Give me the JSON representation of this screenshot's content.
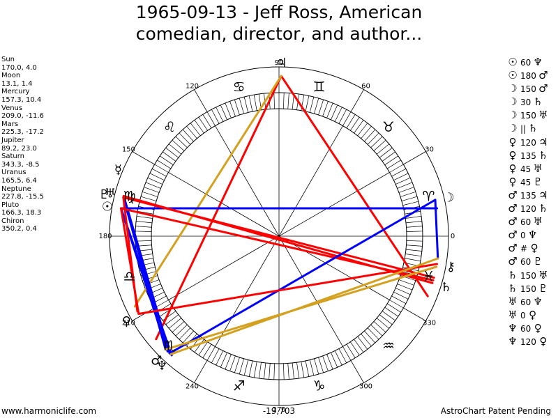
{
  "title_line1": "1965-09-13 - Jeff Ross, American",
  "title_line2": "comedian, director, and author...",
  "planets": [
    {
      "name": "Sun",
      "glyph": "☉",
      "values": "170.0, 4.0",
      "lon": 170.0
    },
    {
      "name": "Moon",
      "glyph": "☽",
      "values": "13.1, 1.4",
      "lon": 13.1
    },
    {
      "name": "Mercury",
      "glyph": "☿",
      "values": "157.3, 10.4",
      "lon": 157.3
    },
    {
      "name": "Venus",
      "glyph": "♀",
      "values": "209.0, -11.6",
      "lon": 209.0
    },
    {
      "name": "Mars",
      "glyph": "♂",
      "values": "225.3, -17.2",
      "lon": 225.3
    },
    {
      "name": "Jupiter",
      "glyph": "♃",
      "values": "89.2, 23.0",
      "lon": 89.2
    },
    {
      "name": "Saturn",
      "glyph": "♄",
      "values": "343.3, -8.5",
      "lon": 343.3
    },
    {
      "name": "Uranus",
      "glyph": "♅",
      "values": "165.5, 6.4",
      "lon": 165.5
    },
    {
      "name": "Neptune",
      "glyph": "♆",
      "values": "227.8, -15.5",
      "lon": 227.8
    },
    {
      "name": "Pluto",
      "glyph": "♇",
      "values": "166.3, 18.3",
      "lon": 166.3
    },
    {
      "name": "Chiron",
      "glyph": "⚷",
      "values": "350.2, 0.4",
      "lon": 350.2
    }
  ],
  "degree_labels": [
    {
      "deg": 0,
      "text": "0"
    },
    {
      "deg": 30,
      "text": "30"
    },
    {
      "deg": 60,
      "text": "60"
    },
    {
      "deg": 90,
      "text": "90"
    },
    {
      "deg": 120,
      "text": "120"
    },
    {
      "deg": 150,
      "text": "150"
    },
    {
      "deg": 180,
      "text": "180"
    },
    {
      "deg": 210,
      "text": "210"
    },
    {
      "deg": 240,
      "text": "240"
    },
    {
      "deg": 270,
      "text": "270"
    },
    {
      "deg": 300,
      "text": "300"
    },
    {
      "deg": 330,
      "text": "330"
    }
  ],
  "signs": [
    {
      "name": "aries",
      "glyph": "♈",
      "deg": 15
    },
    {
      "name": "taurus",
      "glyph": "♉",
      "deg": 45
    },
    {
      "name": "gemini",
      "glyph": "♊",
      "deg": 75
    },
    {
      "name": "cancer",
      "glyph": "♋",
      "deg": 105
    },
    {
      "name": "leo",
      "glyph": "♌",
      "deg": 135
    },
    {
      "name": "virgo",
      "glyph": "♍",
      "deg": 165
    },
    {
      "name": "libra",
      "glyph": "♎",
      "deg": 195
    },
    {
      "name": "scorpio",
      "glyph": "♏",
      "deg": 225
    },
    {
      "name": "sagittarius",
      "glyph": "♐",
      "deg": 255
    },
    {
      "name": "capricorn",
      "glyph": "♑",
      "deg": 285
    },
    {
      "name": "aquarius",
      "glyph": "♒",
      "deg": 315
    },
    {
      "name": "pisces",
      "glyph": "♓",
      "deg": 345
    }
  ],
  "aspects": [
    {
      "p1": "☉",
      "angle": "60",
      "p2": "♆"
    },
    {
      "p1": "☉",
      "angle": "180",
      "p2": "♂"
    },
    {
      "p1": "☽",
      "angle": "150",
      "p2": "♂"
    },
    {
      "p1": "☽",
      "angle": "30",
      "p2": "♄"
    },
    {
      "p1": "☽",
      "angle": "150",
      "p2": "♅"
    },
    {
      "p1": "☽",
      "angle": "||",
      "p2": "♄"
    },
    {
      "p1": "♀",
      "angle": "120",
      "p2": "♃"
    },
    {
      "p1": "♀",
      "angle": "135",
      "p2": "♄"
    },
    {
      "p1": "♀",
      "angle": "45",
      "p2": "♅"
    },
    {
      "p1": "♀",
      "angle": "45",
      "p2": "♇"
    },
    {
      "p1": "♂",
      "angle": "135",
      "p2": "♃"
    },
    {
      "p1": "♂",
      "angle": "120",
      "p2": "♄"
    },
    {
      "p1": "♂",
      "angle": "60",
      "p2": "♅"
    },
    {
      "p1": "♂",
      "angle": "0",
      "p2": "♆"
    },
    {
      "p1": "♂",
      "angle": "#",
      "p2": "♀"
    },
    {
      "p1": "♂",
      "angle": "60",
      "p2": "♇"
    },
    {
      "p1": "♄",
      "angle": "150",
      "p2": "♅"
    },
    {
      "p1": "♄",
      "angle": "150",
      "p2": "♇"
    },
    {
      "p1": "♅",
      "angle": "60",
      "p2": "♆"
    },
    {
      "p1": "♅",
      "angle": "0",
      "p2": "♀"
    },
    {
      "p1": "♆",
      "angle": "60",
      "p2": "♀"
    },
    {
      "p1": "♆",
      "angle": "120",
      "p2": "♀"
    }
  ],
  "chart_lines": [
    {
      "from": 89.2,
      "to": 220.0,
      "color": "#ff0000"
    },
    {
      "from": 89.2,
      "to": 338.0,
      "color": "#ff0000"
    },
    {
      "from": 89.2,
      "to": 206.0,
      "color": "#d4a020"
    },
    {
      "from": 170.0,
      "to": 10.0,
      "color": "#0000ff"
    },
    {
      "from": 170.0,
      "to": 228.0,
      "color": "#0000ff"
    },
    {
      "from": 170.0,
      "to": 226.0,
      "color": "#0000ff"
    },
    {
      "from": 166.0,
      "to": 225.0,
      "color": "#0000ff"
    },
    {
      "from": 165.5,
      "to": 227.0,
      "color": "#0000ff"
    },
    {
      "from": 170.0,
      "to": 344.0,
      "color": "#ff0000"
    },
    {
      "from": 166.0,
      "to": 345.0,
      "color": "#ff0000"
    },
    {
      "from": 165.5,
      "to": 343.0,
      "color": "#ff0000"
    },
    {
      "from": 13.1,
      "to": 227.0,
      "color": "#0000ff"
    },
    {
      "from": 13.1,
      "to": 352.0,
      "color": "#0000ff"
    },
    {
      "from": 350.0,
      "to": 209.0,
      "color": "#ff0000"
    },
    {
      "from": 352.0,
      "to": 227.5,
      "color": "#d4a020"
    },
    {
      "from": 349.0,
      "to": 225.0,
      "color": "#d4a020"
    },
    {
      "from": 170.0,
      "to": 209.0,
      "color": "#ff0000"
    },
    {
      "from": 166.0,
      "to": 208.0,
      "color": "#ff0000"
    }
  ],
  "footer_left": "www.harmoniclife.com",
  "footer_center": "-19,703",
  "footer_right": "AstroChart Patent Pending"
}
